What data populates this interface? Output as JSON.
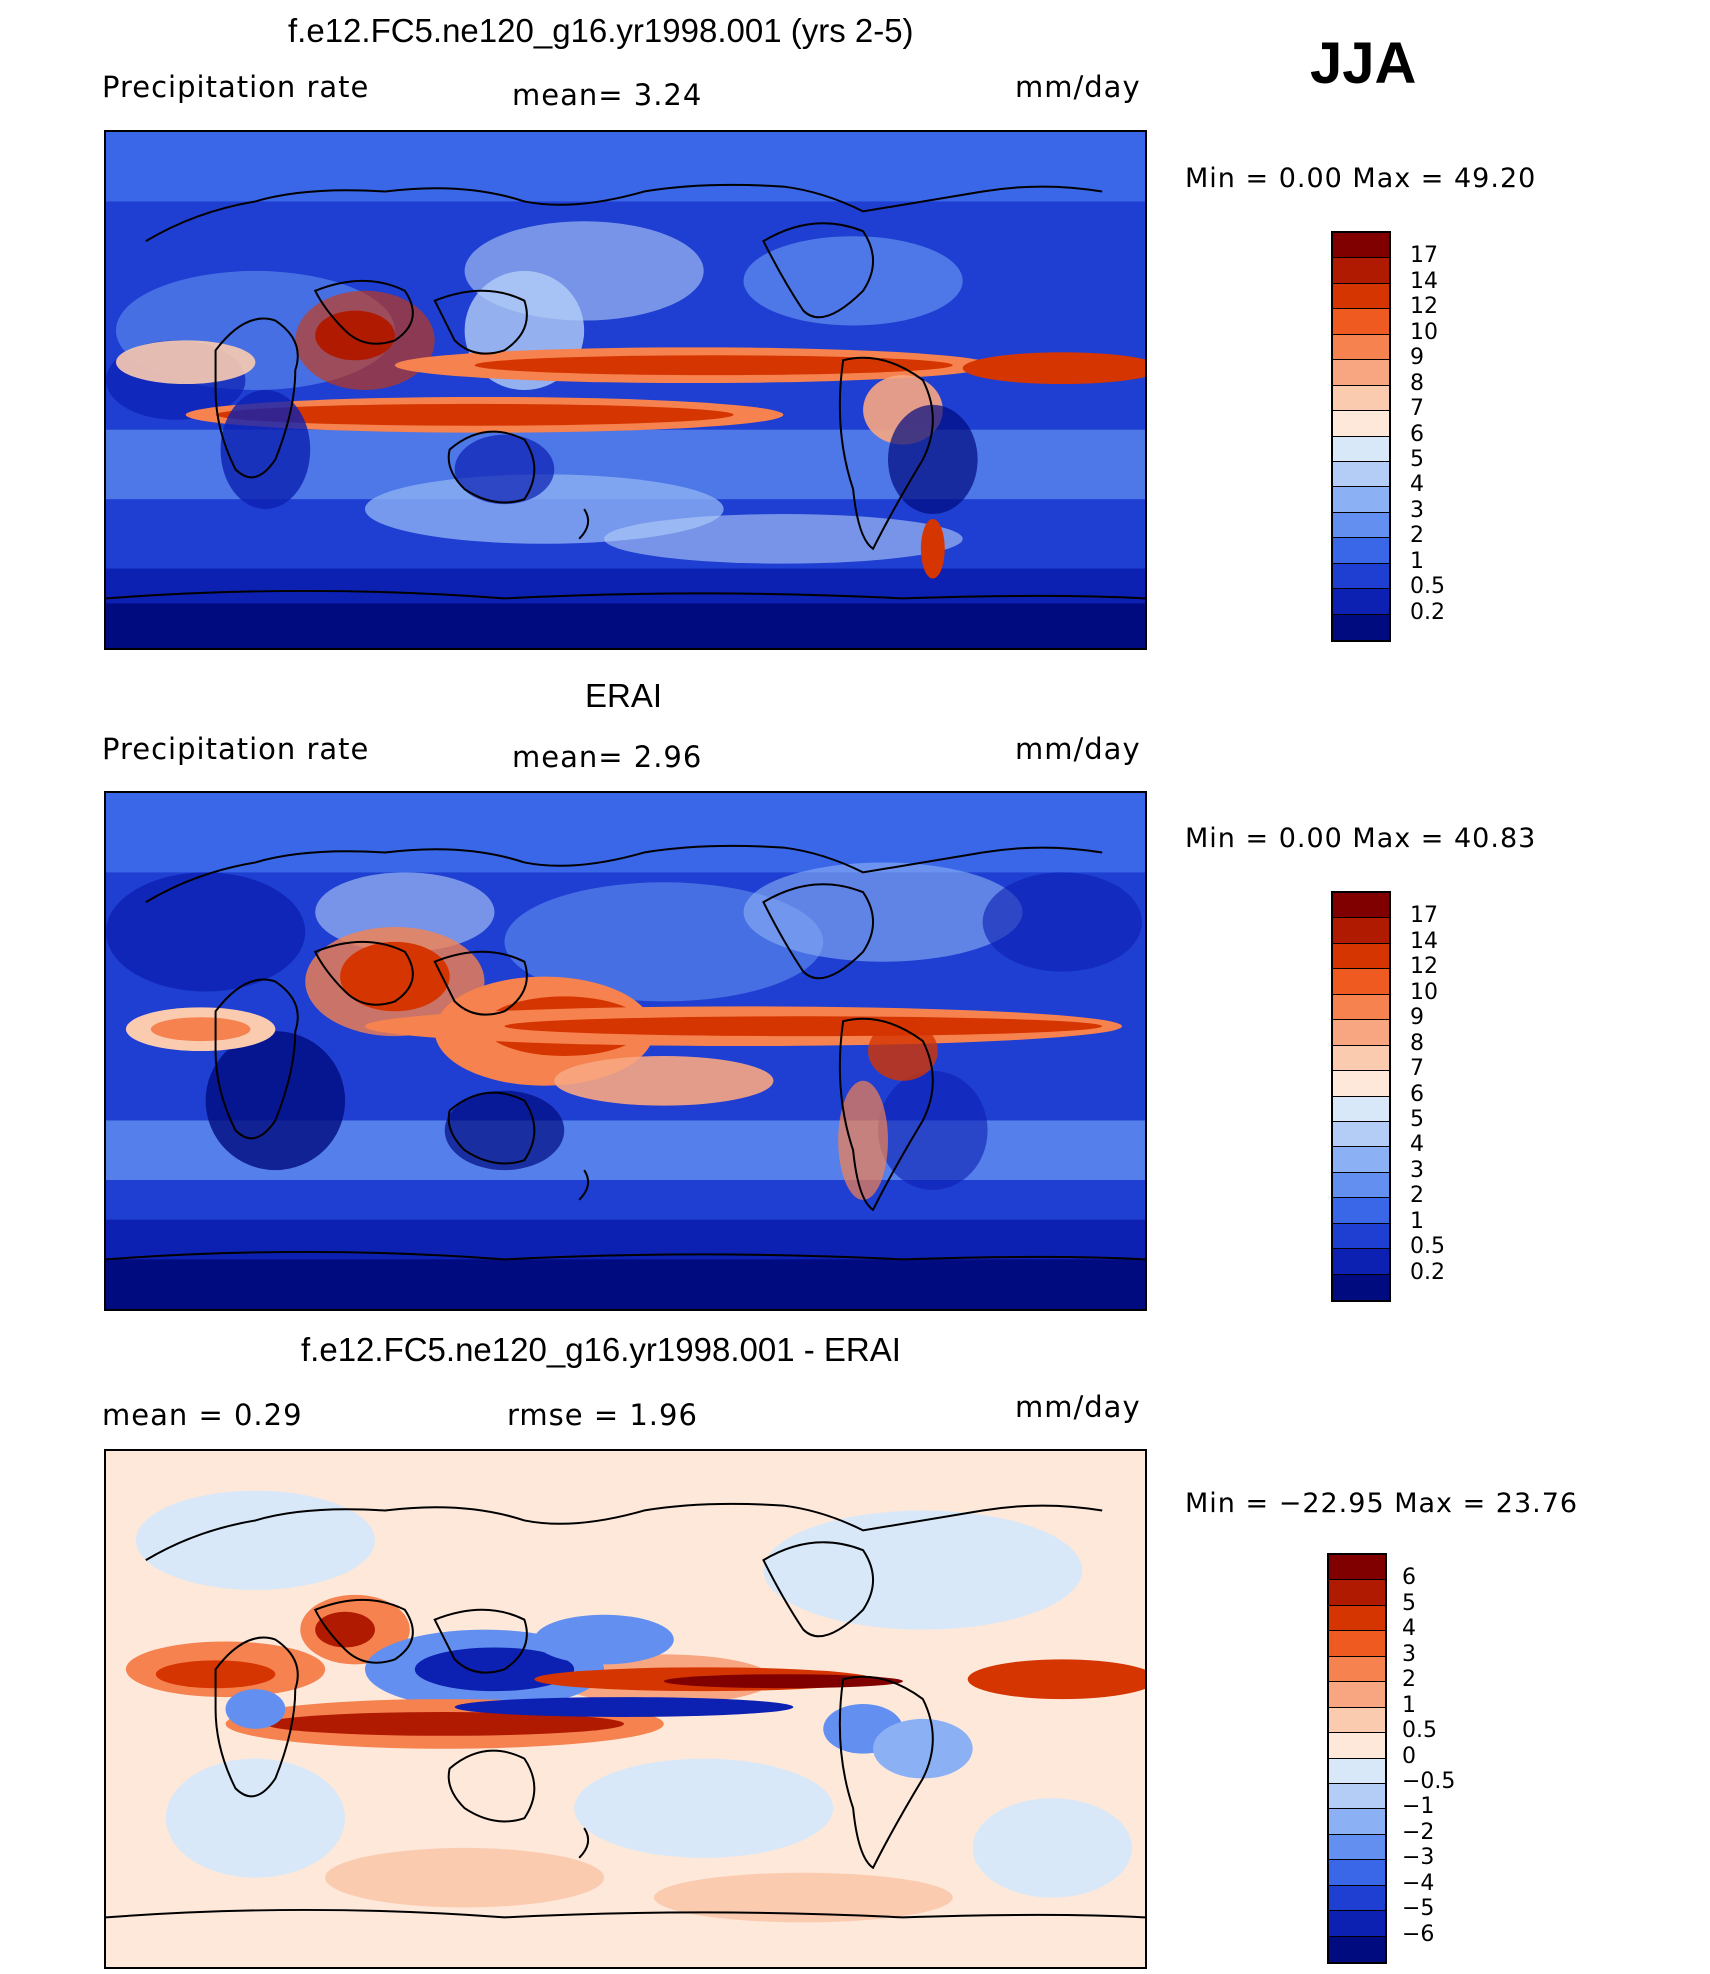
{
  "season": "JJA",
  "panels": [
    {
      "title": "f.e12.FC5.ne120_g16.yr1998.001 (yrs 2-5)",
      "left_label": "Precipitation  rate",
      "mid_label": "mean=    3.24",
      "right_label": "mm/day",
      "minmax": "Min  =     0.00  Max  =    49.20",
      "colorbar": {
        "labels": [
          "17",
          "14",
          "12",
          "10",
          "9",
          "8",
          "7",
          "6",
          "5",
          "4",
          "3",
          "2",
          "1",
          "0.5",
          "0.2"
        ],
        "colors": [
          "#800000",
          "#b01a00",
          "#d53500",
          "#ee5a20",
          "#f5824f",
          "#f8a681",
          "#fbcbb0",
          "#fde8da",
          "#d8e8f8",
          "#b3cdf6",
          "#8cb0f4",
          "#6390f0",
          "#3a66e8",
          "#1e3fd2",
          "#0c20b2",
          "#000b80"
        ]
      }
    },
    {
      "title": "ERAI",
      "left_label": "Precipitation  rate",
      "mid_label": "mean=    2.96",
      "right_label": "mm/day",
      "minmax": "Min  =     0.00  Max  =    40.83",
      "colorbar": {
        "labels": [
          "17",
          "14",
          "12",
          "10",
          "9",
          "8",
          "7",
          "6",
          "5",
          "4",
          "3",
          "2",
          "1",
          "0.5",
          "0.2"
        ],
        "colors": [
          "#800000",
          "#b01a00",
          "#d53500",
          "#ee5a20",
          "#f5824f",
          "#f8a681",
          "#fbcbb0",
          "#fde8da",
          "#d8e8f8",
          "#b3cdf6",
          "#8cb0f4",
          "#6390f0",
          "#3a66e8",
          "#1e3fd2",
          "#0c20b2",
          "#000b80"
        ]
      }
    },
    {
      "title": "f.e12.FC5.ne120_g16.yr1998.001 - ERAI",
      "left_label": "mean  =     0.29",
      "mid_label": "rmse  =     1.96",
      "right_label": "mm/day",
      "minmax": "Min  =  −22.95  Max  =    23.76",
      "colorbar": {
        "labels": [
          "6",
          "5",
          "4",
          "3",
          "2",
          "1",
          "0.5",
          "0",
          "−0.5",
          "−1",
          "−2",
          "−3",
          "−4",
          "−5",
          "−6"
        ],
        "colors": [
          "#800000",
          "#b01a00",
          "#d53500",
          "#ee5a20",
          "#f5824f",
          "#f8a681",
          "#fbcbb0",
          "#fde8da",
          "#d8e8f8",
          "#b3cdf6",
          "#8cb0f4",
          "#6390f0",
          "#3a66e8",
          "#1e3fd2",
          "#0c20b2",
          "#000b80"
        ]
      }
    }
  ]
}
